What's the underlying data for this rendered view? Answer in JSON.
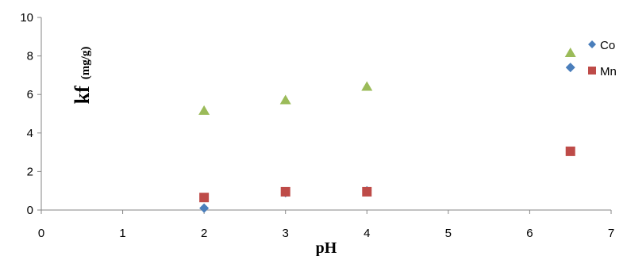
{
  "chart_data": {
    "type": "scatter",
    "title": "",
    "xlabel": "pH",
    "ylabel": "kf",
    "ylabel_unit": "(mg/g)",
    "xlim": [
      0,
      7
    ],
    "ylim": [
      0,
      10
    ],
    "x_ticks": [
      0,
      1,
      2,
      3,
      4,
      5,
      6,
      7
    ],
    "y_ticks": [
      0,
      2,
      4,
      6,
      8,
      10
    ],
    "grid": false,
    "legend_position": "top-right",
    "series": [
      {
        "name": "Co",
        "marker": "diamond",
        "color": "#4a7ebb",
        "points": [
          {
            "x": 2,
            "y": 0.1
          },
          {
            "x": 3,
            "y": 0.9
          },
          {
            "x": 4,
            "y": 1.0
          },
          {
            "x": 6.5,
            "y": 7.4
          }
        ]
      },
      {
        "name": "Mn",
        "marker": "square",
        "color": "#be4b48",
        "points": [
          {
            "x": 2,
            "y": 0.65
          },
          {
            "x": 3,
            "y": 0.95
          },
          {
            "x": 4,
            "y": 0.95
          },
          {
            "x": 6.5,
            "y": 3.05
          }
        ]
      },
      {
        "marker": "triangle",
        "color": "#9bbb59",
        "points": [
          {
            "x": 2,
            "y": 5.15
          },
          {
            "x": 3,
            "y": 5.7
          },
          {
            "x": 4,
            "y": 6.4
          },
          {
            "x": 6.5,
            "y": 8.15
          }
        ]
      }
    ]
  }
}
